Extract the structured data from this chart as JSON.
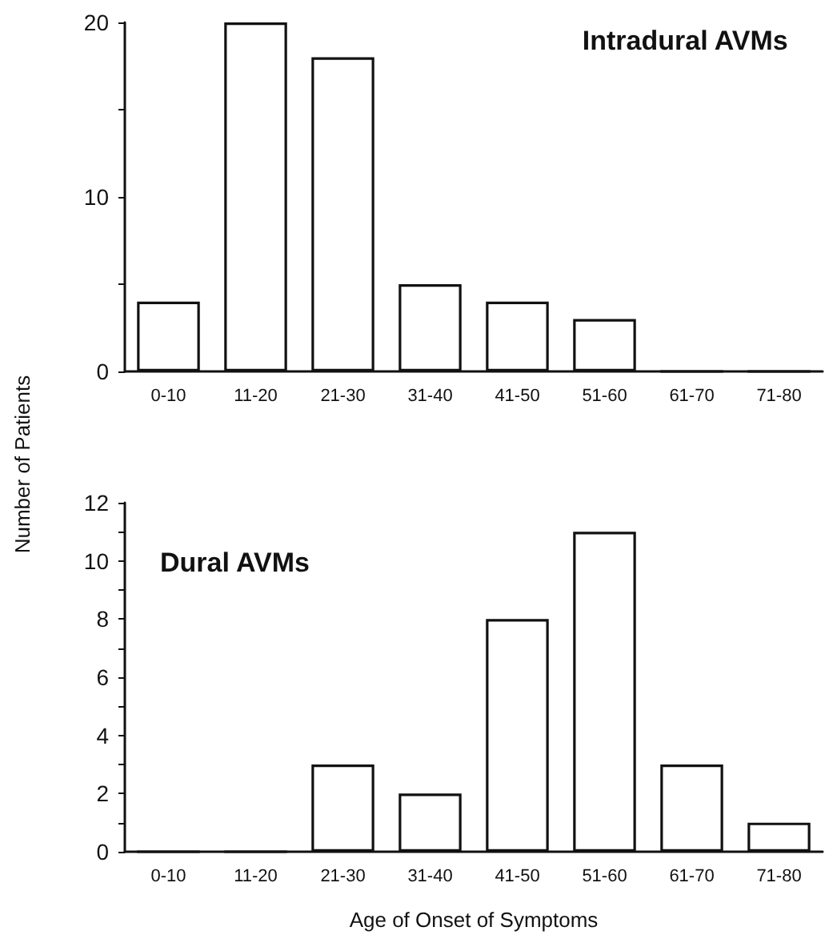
{
  "chart_data": [
    {
      "type": "bar",
      "title": "Intradural AVMs",
      "ylabel": "Number of Patients",
      "categories": [
        "0-10",
        "11-20",
        "21-30",
        "31-40",
        "41-50",
        "51-60",
        "61-70",
        "71-80"
      ],
      "values": [
        4,
        20,
        18,
        5,
        4,
        3,
        0,
        0
      ],
      "color": "#ffffff",
      "ylim": [
        0,
        20
      ],
      "yticks": [
        0,
        {
          "value": 5,
          "label": null
        },
        10,
        {
          "value": 15,
          "label": null
        },
        20
      ],
      "grid": false
    },
    {
      "type": "bar",
      "title": "Dural AVMs",
      "xlabel": "Age of Onset of Symptoms",
      "categories": [
        "0-10",
        "11-20",
        "21-30",
        "31-40",
        "41-50",
        "51-60",
        "61-70",
        "71-80"
      ],
      "values": [
        0,
        0,
        3,
        2,
        8,
        11,
        3,
        1
      ],
      "color": "#ffffff",
      "ylim": [
        0,
        12
      ],
      "yticks": [
        0,
        {
          "value": 1,
          "label": null
        },
        2,
        {
          "value": 3,
          "label": null
        },
        4,
        {
          "value": 5,
          "label": null
        },
        6,
        {
          "value": 7,
          "label": null
        },
        8,
        {
          "value": 9,
          "label": null
        },
        10,
        {
          "value": 11,
          "label": null
        },
        12
      ],
      "grid": false
    }
  ]
}
